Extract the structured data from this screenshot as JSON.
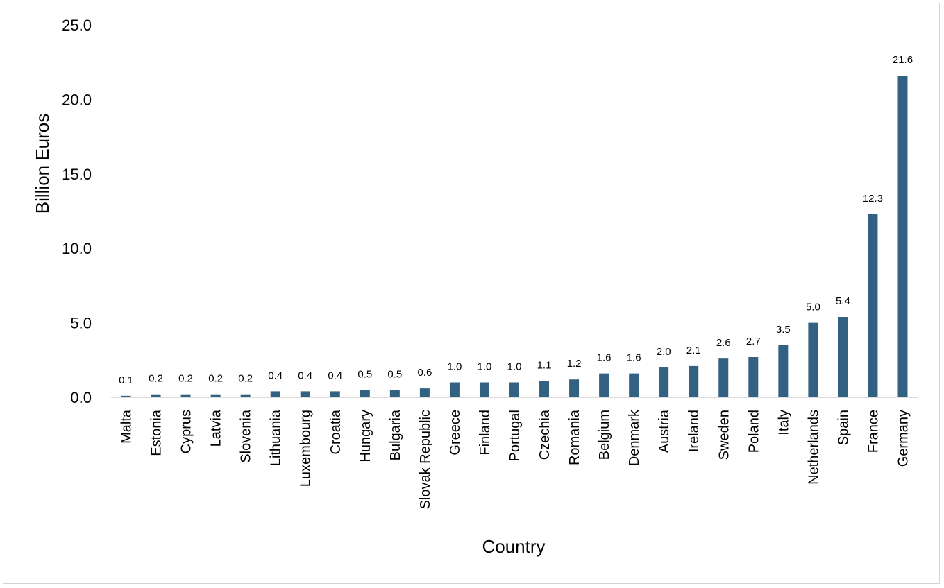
{
  "chart_data": {
    "type": "bar",
    "xlabel": "Country",
    "ylabel": "Billion Euros",
    "ylim": [
      0,
      25
    ],
    "yticks": [
      "0.0",
      "5.0",
      "10.0",
      "15.0",
      "20.0",
      "25.0"
    ],
    "grid": false,
    "legend": "none",
    "bar_color": "#336181",
    "categories": [
      "Malta",
      "Estonia",
      "Cyprus",
      "Latvia",
      "Slovenia",
      "Lithuania",
      "Luxembourg",
      "Croatia",
      "Hungary",
      "Bulgaria",
      "Slovak Republic",
      "Greece",
      "Finland",
      "Portugal",
      "Czechia",
      "Romania",
      "Belgium",
      "Denmark",
      "Austria",
      "Ireland",
      "Sweden",
      "Poland",
      "Italy",
      "Netherlands",
      "Spain",
      "France",
      "Germany"
    ],
    "values": [
      0.1,
      0.2,
      0.2,
      0.2,
      0.2,
      0.4,
      0.4,
      0.4,
      0.5,
      0.5,
      0.6,
      1.0,
      1.0,
      1.0,
      1.1,
      1.2,
      1.6,
      1.6,
      2.0,
      2.1,
      2.6,
      2.7,
      3.5,
      5.0,
      5.4,
      12.3,
      21.6
    ],
    "data_labels": [
      "0.1",
      "0.2",
      "0.2",
      "0.2",
      "0.2",
      "0.4",
      "0.4",
      "0.4",
      "0.5",
      "0.5",
      "0.6",
      "1.0",
      "1.0",
      "1.0",
      "1.1",
      "1.2",
      "1.6",
      "1.6",
      "2.0",
      "2.1",
      "2.6",
      "2.7",
      "3.5",
      "5.0",
      "5.4",
      "12.3",
      "21.6"
    ]
  }
}
